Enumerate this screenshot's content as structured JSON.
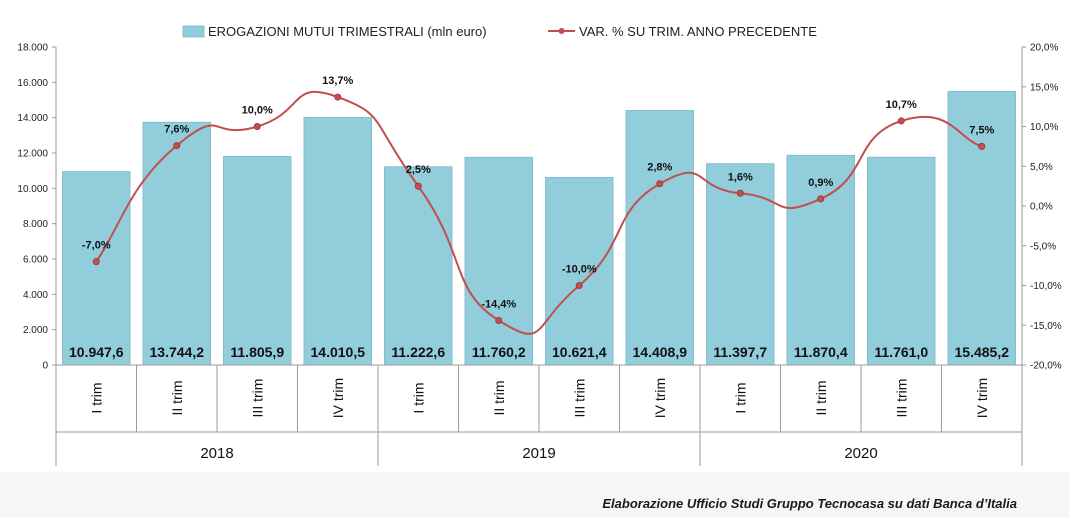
{
  "chart_data": {
    "type": "bar",
    "categories": [
      "I trim",
      "II trim",
      "III trim",
      "IV trim",
      "I trim",
      "II trim",
      "III trim",
      "IV trim",
      "I trim",
      "II trim",
      "III trim",
      "IV trim"
    ],
    "years": [
      "2018",
      "2019",
      "2020"
    ],
    "series": [
      {
        "name": "EROGAZIONI MUTUI TRIMESTRALI (mln euro)",
        "type": "bar",
        "axis": "left",
        "values": [
          10947.6,
          13744.2,
          11805.9,
          14010.5,
          11222.6,
          11760.2,
          10621.4,
          14408.9,
          11397.7,
          11870.4,
          11761.0,
          15485.2
        ],
        "labels": [
          "10.947,6",
          "13.744,2",
          "11.805,9",
          "14.010,5",
          "11.222,6",
          "11.760,2",
          "10.621,4",
          "14.408,9",
          "11.397,7",
          "11.870,4",
          "11.761,0",
          "15.485,2"
        ],
        "color": "#92cddc"
      },
      {
        "name": "VAR. % SU TRIM. ANNO PRECEDENTE",
        "type": "line",
        "axis": "right",
        "values": [
          -7.0,
          7.6,
          10.0,
          13.7,
          2.5,
          -14.4,
          -10.0,
          2.8,
          1.6,
          0.9,
          10.7,
          7.5
        ],
        "labels": [
          "-7,0%",
          "7,6%",
          "10,0%",
          "13,7%",
          "2,5%",
          "-14,4%",
          "-10,0%",
          "2,8%",
          "1,6%",
          "0,9%",
          "10,7%",
          "7,5%"
        ],
        "color": "#c0504d"
      }
    ],
    "y_left": {
      "min": 0,
      "max": 18000,
      "ticks": [
        0,
        2000,
        4000,
        6000,
        8000,
        10000,
        12000,
        14000,
        16000,
        18000
      ],
      "tick_labels": [
        "0",
        "2.000",
        "4.000",
        "6.000",
        "8.000",
        "10.000",
        "12.000",
        "14.000",
        "16.000",
        "18.000"
      ]
    },
    "y_right": {
      "min": -20,
      "max": 20,
      "ticks": [
        -20,
        -15,
        -10,
        -5,
        0,
        5,
        10,
        15,
        20
      ],
      "tick_labels": [
        "-20,0%",
        "-15,0%",
        "-10,0%",
        "-5,0%",
        "0,0%",
        "5,0%",
        "10,0%",
        "15,0%",
        "20,0%"
      ]
    },
    "legend_position": "top",
    "grid": false
  },
  "source_note": "Elaborazione Ufficio Studi Gruppo Tecnocasa su dati Banca d’Italia"
}
